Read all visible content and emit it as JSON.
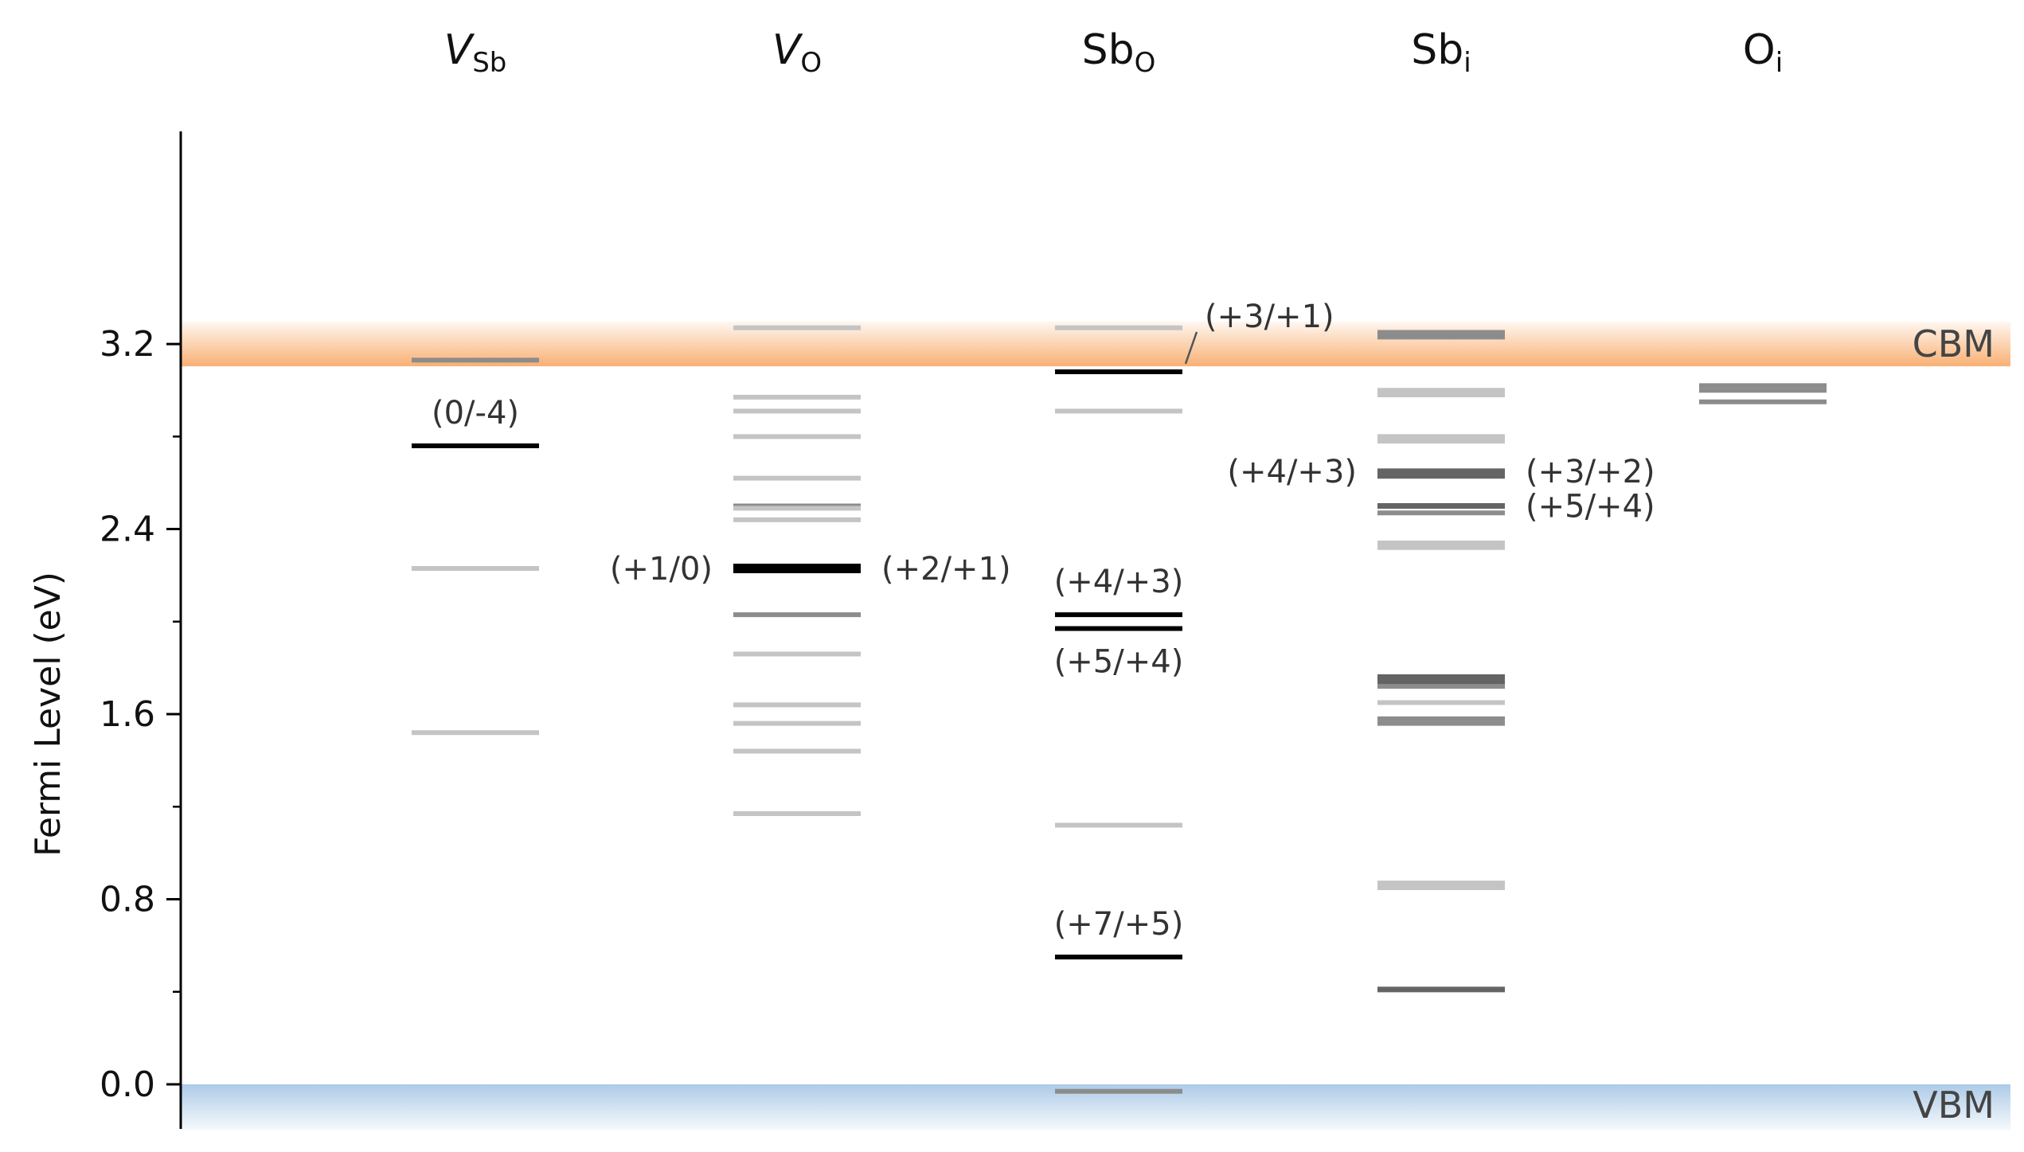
{
  "chart_data": {
    "type": "level-diagram",
    "ylabel": "Fermi Level (eV)",
    "ylim": [
      -0.16,
      3.3
    ],
    "yticks": [
      0.0,
      0.8,
      1.6,
      2.4,
      3.2
    ],
    "ytick_labels": [
      "0.0",
      "0.8",
      "1.6",
      "2.4",
      "3.2"
    ],
    "minor_yticks": [
      0.4,
      1.2,
      2.0,
      2.8
    ],
    "cbm": 3.2,
    "vbm": 0.0,
    "band_labels": {
      "cbm": "CBM",
      "vbm": "VBM"
    },
    "colors": {
      "cbm": "#f8ac6c",
      "vbm": "#a9c8e6",
      "primary": "#000000",
      "weak": "#c4c4c4",
      "medium": "#8c8c8c",
      "strong": "#646464"
    },
    "defects": [
      {
        "label": "V",
        "sub": "Sb",
        "italic": true,
        "levels": [
          {
            "e": 3.13,
            "style": "medium"
          },
          {
            "e": 2.76,
            "style": "primary",
            "label": "(0/-4)",
            "pos": "above"
          },
          {
            "e": 2.23,
            "style": "weak"
          },
          {
            "e": 1.52,
            "style": "weak"
          }
        ]
      },
      {
        "label": "V",
        "sub": "O",
        "italic": true,
        "levels": [
          {
            "e": 3.27,
            "style": "weak"
          },
          {
            "e": 2.97,
            "style": "weak"
          },
          {
            "e": 2.91,
            "style": "weak"
          },
          {
            "e": 2.8,
            "style": "weak"
          },
          {
            "e": 2.62,
            "style": "weak"
          },
          {
            "e": 2.5,
            "style": "medium"
          },
          {
            "e": 2.49,
            "style": "weak"
          },
          {
            "e": 2.44,
            "style": "weak"
          },
          {
            "e": 2.23,
            "style": "primary",
            "thick": true,
            "label": "(+1/0)",
            "pos": "left",
            "label2": "(+2/+1)",
            "pos2": "right"
          },
          {
            "e": 2.03,
            "style": "medium"
          },
          {
            "e": 1.86,
            "style": "weak"
          },
          {
            "e": 1.64,
            "style": "weak"
          },
          {
            "e": 1.56,
            "style": "weak"
          },
          {
            "e": 1.44,
            "style": "weak"
          },
          {
            "e": 1.17,
            "style": "weak"
          }
        ]
      },
      {
        "label": "Sb",
        "sub": "O",
        "italic": false,
        "levels": [
          {
            "e": 3.27,
            "style": "weak"
          },
          {
            "e": 3.08,
            "style": "primary",
            "label": "(+3/+1)",
            "pos": "leader"
          },
          {
            "e": 2.91,
            "style": "weak"
          },
          {
            "e": 2.03,
            "style": "primary",
            "label": "(+4/+3)",
            "pos": "above"
          },
          {
            "e": 1.97,
            "style": "primary",
            "label": "(+5/+4)",
            "pos": "below"
          },
          {
            "e": 1.12,
            "style": "weak"
          },
          {
            "e": 0.55,
            "style": "primary",
            "label": "(+7/+5)",
            "pos": "above"
          },
          {
            "e": -0.03,
            "style": "medium"
          }
        ]
      },
      {
        "label": "Sb",
        "sub": "i",
        "italic": false,
        "levels": [
          {
            "e": 3.25,
            "style": "medium"
          },
          {
            "e": 3.23,
            "style": "medium"
          },
          {
            "e": 3.0,
            "style": "weak"
          },
          {
            "e": 2.98,
            "style": "weak"
          },
          {
            "e": 2.8,
            "style": "weak"
          },
          {
            "e": 2.78,
            "style": "weak"
          },
          {
            "e": 2.65,
            "style": "strong",
            "label": "(+4/+3)",
            "pos": "left",
            "label2": "(+3/+2)",
            "pos2": "right"
          },
          {
            "e": 2.63,
            "style": "strong"
          },
          {
            "e": 2.5,
            "style": "strong",
            "label2": "(+5/+4)",
            "pos2": "right"
          },
          {
            "e": 2.47,
            "style": "medium"
          },
          {
            "e": 2.34,
            "style": "weak"
          },
          {
            "e": 2.32,
            "style": "weak"
          },
          {
            "e": 1.76,
            "style": "strong"
          },
          {
            "e": 1.74,
            "style": "strong"
          },
          {
            "e": 1.72,
            "style": "medium"
          },
          {
            "e": 1.65,
            "style": "weak"
          },
          {
            "e": 1.58,
            "style": "medium"
          },
          {
            "e": 1.56,
            "style": "medium"
          },
          {
            "e": 0.87,
            "style": "weak"
          },
          {
            "e": 0.85,
            "style": "weak"
          },
          {
            "e": 0.41,
            "style": "strong"
          }
        ]
      },
      {
        "label": "O",
        "sub": "i",
        "italic": false,
        "levels": [
          {
            "e": 3.02,
            "style": "medium"
          },
          {
            "e": 3.0,
            "style": "medium"
          },
          {
            "e": 2.95,
            "style": "medium"
          }
        ]
      }
    ]
  }
}
